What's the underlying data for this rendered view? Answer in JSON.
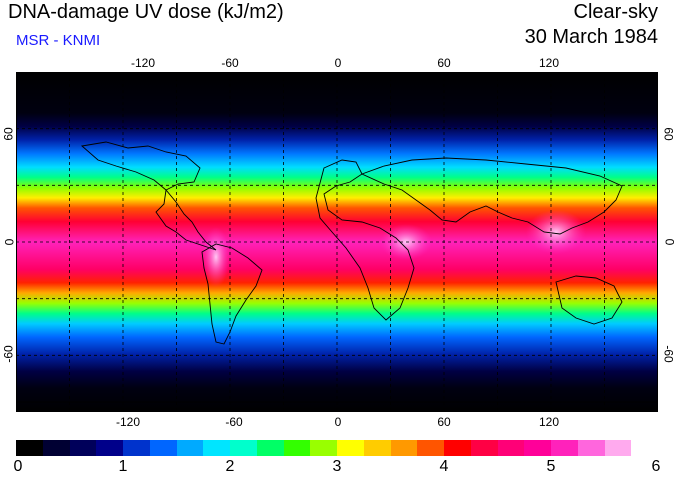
{
  "title": "DNA-damage UV dose (kJ/m2)",
  "subtitle": "MSR - KNMI",
  "condition": "Clear-sky",
  "date": "30 March 1984",
  "map": {
    "projection": "equirectangular",
    "lon_range": [
      -180,
      180
    ],
    "lat_range": [
      -90,
      90
    ],
    "lon_ticks": [
      "-120",
      "-60",
      "0",
      "60",
      "120"
    ],
    "lat_ticks": [
      "60",
      "0",
      "-60"
    ],
    "gridlines": "dashed every 30 degrees"
  },
  "colorbar": {
    "ticks": [
      "0",
      "1",
      "2",
      "3",
      "4",
      "5",
      "6"
    ],
    "colors": [
      "#000000",
      "#000033",
      "#00005a",
      "#00008a",
      "#0033cc",
      "#0066ff",
      "#00aaff",
      "#00e5ff",
      "#00ffcc",
      "#00ff66",
      "#33ff00",
      "#99ff00",
      "#ffff00",
      "#ffcc00",
      "#ff9900",
      "#ff5500",
      "#ff0000",
      "#ff0044",
      "#ff0077",
      "#ff0099",
      "#ff22bb",
      "#ff66dd",
      "#ffaaee",
      "#ffffff"
    ]
  }
}
